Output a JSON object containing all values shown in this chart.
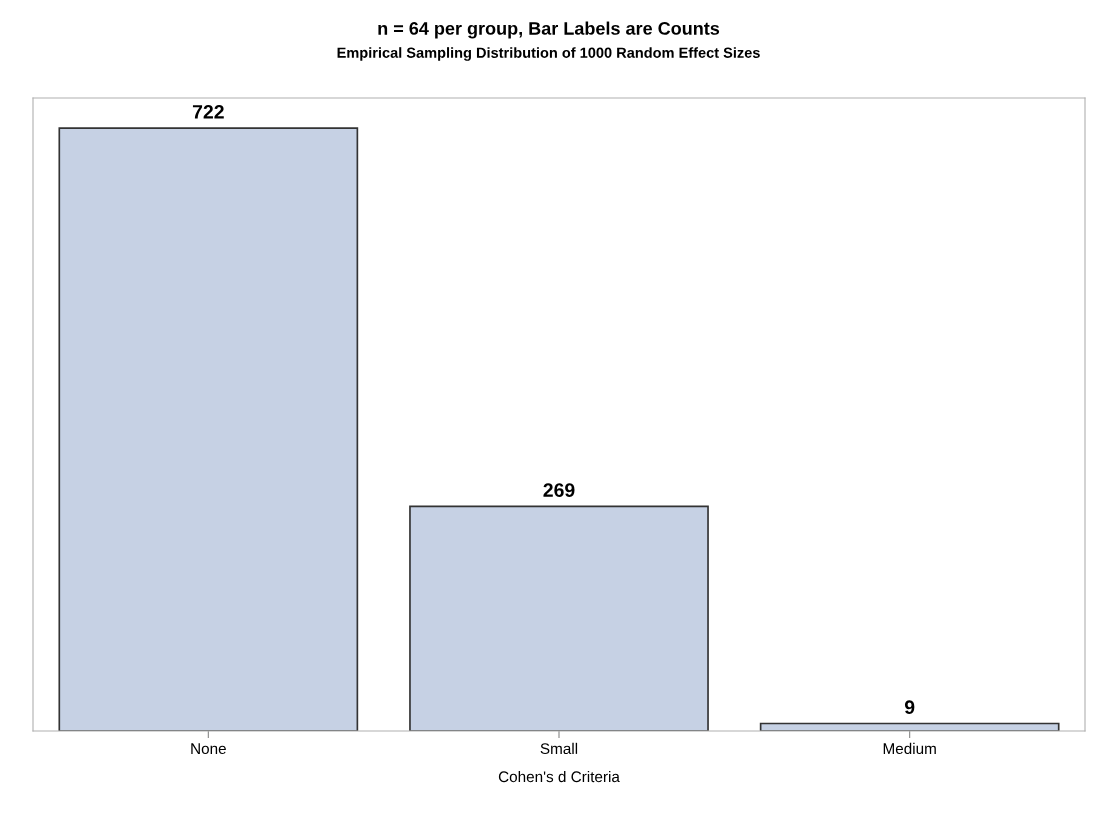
{
  "chart_data": {
    "type": "bar",
    "title": "n = 64 per group, Bar Labels are Counts",
    "subtitle": "Empirical Sampling Distribution of 1000 Random Effect Sizes",
    "xlabel": "Cohen's d Criteria",
    "categories": [
      "None",
      "Small",
      "Medium"
    ],
    "values": [
      722,
      269,
      9
    ],
    "color": "#c6d1e4",
    "data_labels": true,
    "tick_labels": "x",
    "grid": false
  }
}
